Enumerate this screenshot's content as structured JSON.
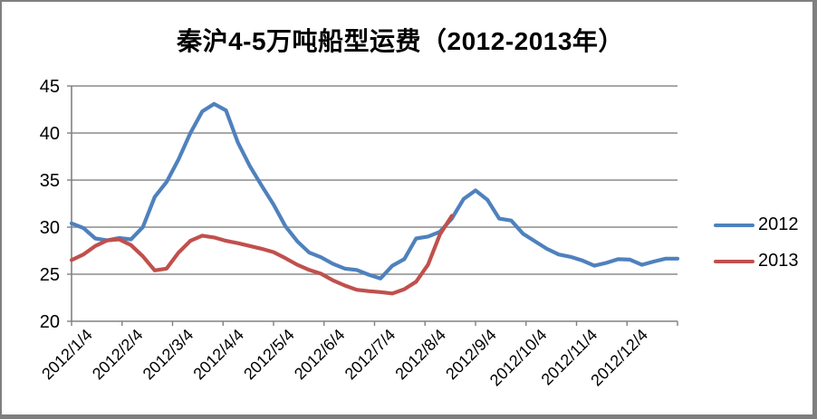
{
  "chart_data": {
    "type": "line",
    "title": "秦沪4-5万吨船型运费（2012-2013年）",
    "ylim": [
      20,
      45
    ],
    "y_ticks": [
      45,
      40,
      35,
      30,
      25,
      20
    ],
    "x_tick_labels": [
      "2012/1/4",
      "2012/2/4",
      "2012/3/4",
      "2012/4/4",
      "2012/5/4",
      "2012/6/4",
      "2012/7/4",
      "2012/8/4",
      "2012/9/4",
      "2012/10/4",
      "2012/11/4",
      "2012/12/4"
    ],
    "grid": "horizontal-only",
    "legend_position": "right",
    "series": [
      {
        "name": "2012",
        "color": "#4F81BD",
        "values": [
          30.4,
          29.9,
          28.8,
          28.6,
          28.85,
          28.7,
          30.0,
          33.2,
          34.8,
          37.2,
          40.0,
          42.3,
          43.1,
          42.4,
          39.0,
          36.5,
          34.4,
          32.4,
          30.1,
          28.5,
          27.3,
          26.8,
          26.1,
          25.6,
          25.45,
          24.95,
          24.55,
          25.9,
          26.6,
          28.8,
          29.0,
          29.5,
          30.9,
          33.0,
          33.9,
          32.9,
          30.9,
          30.7,
          29.3,
          28.5,
          27.7,
          27.1,
          26.85,
          26.45,
          25.9,
          26.2,
          26.6,
          26.55,
          26.0,
          26.35,
          26.65,
          26.65
        ]
      },
      {
        "name": "2013",
        "color": "#C0504D",
        "values": [
          26.5,
          27.1,
          28.0,
          28.6,
          28.7,
          28.1,
          26.9,
          25.4,
          25.6,
          27.3,
          28.55,
          29.1,
          28.9,
          28.55,
          28.3,
          28.0,
          27.7,
          27.35,
          26.7,
          26.0,
          25.45,
          25.05,
          24.35,
          23.8,
          23.35,
          23.2,
          23.1,
          22.95,
          23.4,
          24.2,
          26.0,
          29.2,
          31.2
        ]
      }
    ]
  },
  "colors": {
    "gridline": "#8C8C8C",
    "axis": "#808080",
    "frame_border": "#7F7F7F",
    "background": "#FFFFFF",
    "text": "#000000"
  }
}
